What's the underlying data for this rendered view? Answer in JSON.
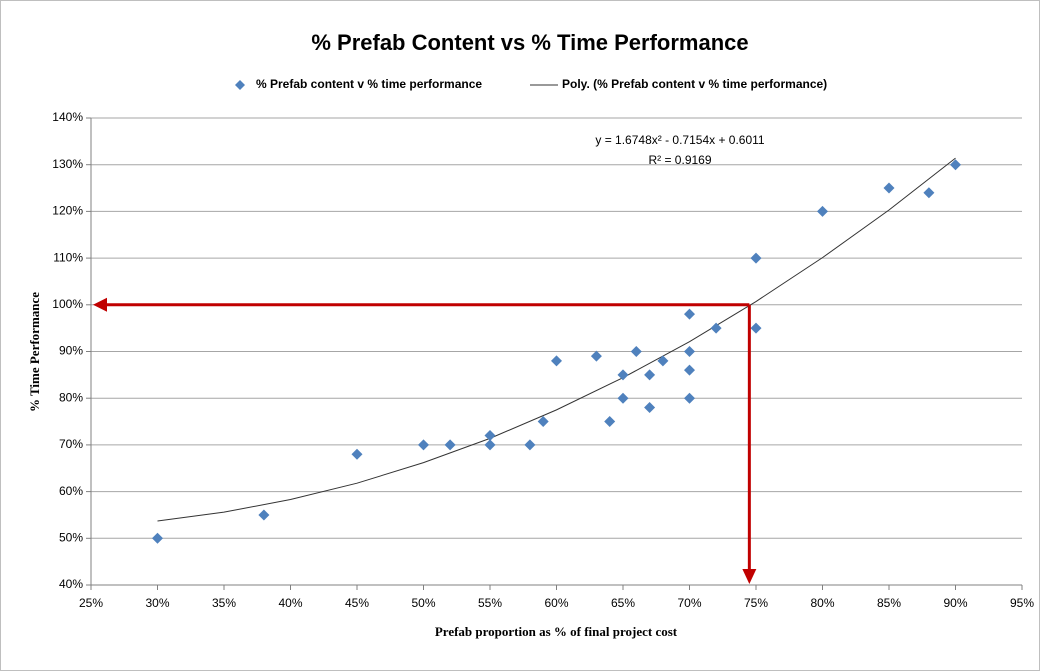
{
  "chart_data": {
    "type": "scatter",
    "title": "% Prefab Content vs % Time Performance",
    "x_label": "Prefab proportion  as % of final project cost",
    "y_label": "% Time  Performance",
    "legend_position": "top",
    "grid": true,
    "xlim": [
      25,
      95
    ],
    "ylim": [
      40,
      140
    ],
    "xticks": [
      {
        "value": 25,
        "label": "25%"
      },
      {
        "value": 30,
        "label": "30%"
      },
      {
        "value": 35,
        "label": "35%"
      },
      {
        "value": 40,
        "label": "40%"
      },
      {
        "value": 45,
        "label": "45%"
      },
      {
        "value": 50,
        "label": "50%"
      },
      {
        "value": 55,
        "label": "55%"
      },
      {
        "value": 60,
        "label": "60%"
      },
      {
        "value": 65,
        "label": "65%"
      },
      {
        "value": 70,
        "label": "70%"
      },
      {
        "value": 75,
        "label": "75%"
      },
      {
        "value": 80,
        "label": "80%"
      },
      {
        "value": 85,
        "label": "85%"
      },
      {
        "value": 90,
        "label": "90%"
      },
      {
        "value": 95,
        "label": "95%"
      }
    ],
    "yticks": [
      {
        "value": 40,
        "label": "40%"
      },
      {
        "value": 50,
        "label": "50%"
      },
      {
        "value": 60,
        "label": "60%"
      },
      {
        "value": 70,
        "label": "70%"
      },
      {
        "value": 80,
        "label": "80%"
      },
      {
        "value": 90,
        "label": "90%"
      },
      {
        "value": 100,
        "label": "100%"
      },
      {
        "value": 110,
        "label": "110%"
      },
      {
        "value": 120,
        "label": "120%"
      },
      {
        "value": 130,
        "label": "130%"
      },
      {
        "value": 140,
        "label": "140%"
      }
    ],
    "series": [
      {
        "name": "% Prefab content v % time performance",
        "color": "#4f81bd",
        "x": [
          30,
          38,
          45,
          50,
          52,
          55,
          55,
          58,
          59,
          60,
          63,
          64,
          65,
          65,
          66,
          67,
          67,
          68,
          70,
          70,
          70,
          70,
          72,
          75,
          75,
          80,
          85,
          88,
          90
        ],
        "values": [
          50,
          55,
          68,
          70,
          70,
          72,
          70,
          70,
          75,
          88,
          89,
          75,
          85,
          80,
          90,
          85,
          78,
          88,
          98,
          90,
          86,
          80,
          95,
          110,
          95,
          120,
          125,
          124,
          130
        ]
      }
    ],
    "trendline": {
      "name": "Poly. (% Prefab content v % time performance)",
      "color": "#333333",
      "equation": "y = 1.6748x² - 0.7154x + 0.6011",
      "r_squared": "R² = 0.9169",
      "x": [
        30,
        35,
        40,
        45,
        50,
        55,
        60,
        65,
        70,
        75,
        80,
        85,
        90
      ],
      "values": [
        53.7,
        55.6,
        58.3,
        61.8,
        66.2,
        71.4,
        77.5,
        84.4,
        92.1,
        100.7,
        110.1,
        120.3,
        131.4
      ]
    },
    "reference": {
      "x": 74.5,
      "y": 100,
      "color": "#c00000"
    }
  }
}
